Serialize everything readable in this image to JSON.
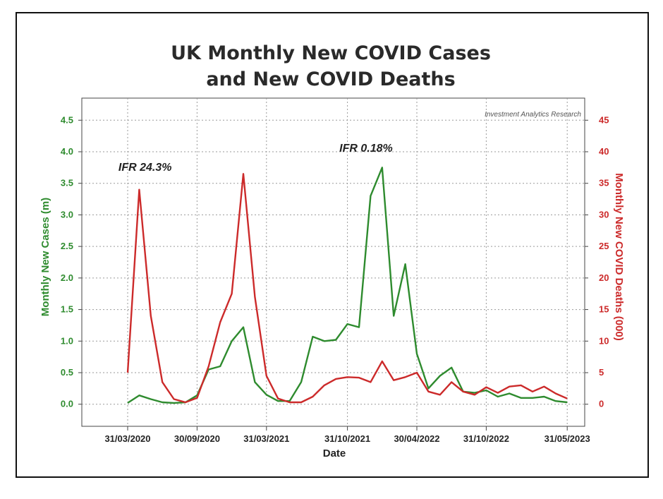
{
  "chart_data": {
    "type": "line",
    "title_line1": "UK Monthly New COVID Cases",
    "title_line2": "and New COVID Deaths",
    "xlabel": "Date",
    "ylabel_left": "Monthly New Cases (m)",
    "ylabel_right": "Monthly New COVID Deaths (000)",
    "credit": "Investment Analytics Research",
    "x_ticks": [
      "31/03/2020",
      "30/09/2020",
      "31/03/2021",
      "31/10/2021",
      "30/04/2022",
      "31/10/2022",
      "31/05/2023"
    ],
    "x_tick_month_index": [
      0,
      6,
      12,
      19,
      25,
      31,
      38
    ],
    "y_left_ticks": [
      "0.0",
      "0.5",
      "1.0",
      "1.5",
      "2.0",
      "2.5",
      "3.0",
      "3.5",
      "4.0",
      "4.5"
    ],
    "y_right_ticks": [
      "0",
      "5",
      "10",
      "15",
      "20",
      "25",
      "30",
      "35",
      "40",
      "45"
    ],
    "ylim_left": [
      -0.35,
      4.85
    ],
    "ylim_right": [
      -3.5,
      48.5
    ],
    "grid": true,
    "annotations": [
      {
        "text": "IFR 24.3%",
        "month_index": 0.3,
        "y_left": 3.7
      },
      {
        "text": "IFR 0.18%",
        "month_index": 19.4,
        "y_left": 4.0
      }
    ],
    "series": [
      {
        "name": "Monthly New Cases (m)",
        "axis": "left",
        "color": "#2e8b2e",
        "x": [
          0,
          1,
          2,
          3,
          4,
          5,
          6,
          7,
          8,
          9,
          10,
          11,
          12,
          13,
          14,
          15,
          16,
          17,
          18,
          19,
          20,
          21,
          22,
          23,
          24,
          25,
          26,
          27,
          28,
          29,
          30,
          31,
          32,
          33,
          34,
          35,
          36,
          37,
          38
        ],
        "values": [
          0.02,
          0.14,
          0.08,
          0.03,
          0.02,
          0.03,
          0.14,
          0.55,
          0.6,
          1.0,
          1.22,
          0.35,
          0.15,
          0.05,
          0.05,
          0.35,
          1.07,
          1.0,
          1.02,
          1.27,
          1.22,
          3.3,
          3.75,
          1.4,
          2.22,
          0.8,
          0.25,
          0.45,
          0.58,
          0.2,
          0.18,
          0.22,
          0.12,
          0.17,
          0.1,
          0.1,
          0.12,
          0.05,
          0.03
        ]
      },
      {
        "name": "Monthly New COVID Deaths (000)",
        "axis": "right",
        "color": "#cc2a2a",
        "x": [
          0,
          1,
          2,
          3,
          4,
          5,
          6,
          7,
          8,
          9,
          10,
          11,
          12,
          13,
          14,
          15,
          16,
          17,
          18,
          19,
          20,
          21,
          22,
          23,
          24,
          25,
          26,
          27,
          28,
          29,
          30,
          31,
          32,
          33,
          34,
          35,
          36,
          37,
          38
        ],
        "values": [
          5.0,
          34.0,
          14.0,
          3.5,
          0.8,
          0.3,
          1.0,
          6.0,
          13.0,
          17.5,
          36.5,
          17.0,
          4.5,
          0.9,
          0.3,
          0.3,
          1.2,
          3.0,
          4.0,
          4.3,
          4.2,
          3.5,
          6.8,
          3.8,
          4.3,
          5.0,
          2.0,
          1.5,
          3.5,
          2.0,
          1.5,
          2.7,
          1.8,
          2.8,
          3.0,
          2.0,
          2.8,
          1.7,
          0.9
        ]
      }
    ]
  }
}
